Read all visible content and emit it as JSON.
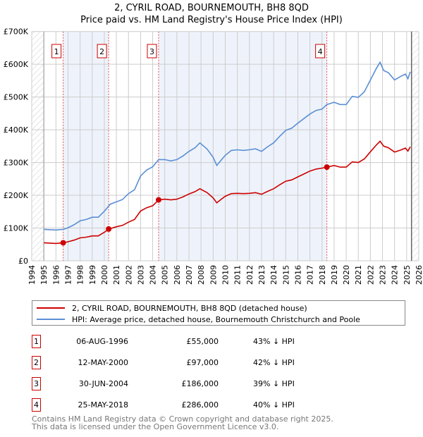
{
  "title": "2, CYRIL ROAD, BOURNEMOUTH, BH8 8QD",
  "subtitle": "Price paid vs. HM Land Registry's House Price Index (HPI)",
  "colors": {
    "property": "#cc0000",
    "hpi": "#5b8fd4",
    "shade": "#eef3fb"
  },
  "chart_data": {
    "type": "line",
    "title": "2, CYRIL ROAD, BOURNEMOUTH, BH8 8QD — Price paid vs. HM Land Registry's House Price Index (HPI)",
    "xlim": [
      1994,
      2026
    ],
    "ylim": [
      0,
      700000
    ],
    "x_ticks": [
      "1994",
      "1995",
      "1996",
      "1997",
      "1998",
      "1999",
      "2000",
      "2001",
      "2002",
      "2003",
      "2004",
      "2005",
      "2006",
      "2007",
      "2008",
      "2009",
      "2010",
      "2011",
      "2012",
      "2013",
      "2014",
      "2015",
      "2016",
      "2017",
      "2018",
      "2019",
      "2020",
      "2021",
      "2022",
      "2023",
      "2024",
      "2025",
      "2026"
    ],
    "y_ticks": [
      {
        "v": 0,
        "label": "£0"
      },
      {
        "v": 100000,
        "label": "£100K"
      },
      {
        "v": 200000,
        "label": "£200K"
      },
      {
        "v": 300000,
        "label": "£300K"
      },
      {
        "v": 400000,
        "label": "£400K"
      },
      {
        "v": 500000,
        "label": "£500K"
      },
      {
        "v": 600000,
        "label": "£600K"
      },
      {
        "v": 700000,
        "label": "£700K"
      }
    ],
    "grid": true,
    "series": [
      {
        "name": "HPI: Average price, detached house, Bournemouth Christchurch and Poole",
        "color": "#5b8fd4",
        "x": [
          1995,
          1996,
          1996.6,
          1997,
          1997.5,
          1998,
          1998.5,
          1999,
          1999.5,
          2000,
          2000.5,
          2001,
          2001.5,
          2002,
          2002.5,
          2003,
          2003.5,
          2004,
          2004.5,
          2005,
          2005.5,
          2006,
          2006.5,
          2007,
          2007.5,
          2007.9,
          2008.5,
          2009,
          2009.3,
          2009.7,
          2010,
          2010.5,
          2011,
          2011.5,
          2012,
          2012.5,
          2013,
          2013.5,
          2014,
          2014.5,
          2015,
          2015.5,
          2016,
          2016.5,
          2017,
          2017.5,
          2018,
          2018.4,
          2019,
          2019.5,
          2020,
          2020.5,
          2021,
          2021.5,
          2022,
          2022.5,
          2022.8,
          2023.1,
          2023.5,
          2024,
          2024.5,
          2024.9,
          2025.1,
          2025.3
        ],
        "y": [
          96000,
          94000,
          96000,
          101000,
          110000,
          122000,
          126000,
          133000,
          133000,
          151000,
          173000,
          180000,
          187000,
          205000,
          217000,
          259000,
          277000,
          287000,
          309000,
          309000,
          305000,
          309000,
          320000,
          334000,
          345000,
          360000,
          341000,
          316000,
          291000,
          309000,
          322000,
          337000,
          339000,
          337000,
          339000,
          342000,
          334000,
          348000,
          360000,
          380000,
          398000,
          405000,
          420000,
          434000,
          448000,
          459000,
          463000,
          477000,
          484000,
          477000,
          477000,
          502000,
          499000,
          516000,
          552000,
          588000,
          606000,
          581000,
          574000,
          552000,
          563000,
          570000,
          556000,
          577000
        ]
      },
      {
        "name": "2, CYRIL ROAD, BOURNEMOUTH, BH8 8QD (detached house)",
        "color": "#cc0000",
        "x": [
          1995,
          1996,
          1996.6,
          1997,
          1997.5,
          1998,
          1998.5,
          1999,
          1999.5,
          2000,
          2000.4,
          2001,
          2001.5,
          2002,
          2002.5,
          2003,
          2003.5,
          2004,
          2004.5,
          2005,
          2005.5,
          2006,
          2006.5,
          2007,
          2007.5,
          2007.9,
          2008.5,
          2009,
          2009.3,
          2009.7,
          2010,
          2010.5,
          2011,
          2011.5,
          2012,
          2012.5,
          2013,
          2013.5,
          2014,
          2014.5,
          2015,
          2015.5,
          2016,
          2016.5,
          2017,
          2017.5,
          2018,
          2018.4,
          2019,
          2019.5,
          2020,
          2020.5,
          2021,
          2021.5,
          2022,
          2022.5,
          2022.8,
          2023.1,
          2023.5,
          2024,
          2024.5,
          2024.9,
          2025.1,
          2025.3
        ],
        "y": [
          55000,
          53000,
          55000,
          58000,
          63000,
          70000,
          72000,
          76000,
          76000,
          87000,
          97000,
          104000,
          108000,
          118000,
          126000,
          152000,
          162000,
          168000,
          186000,
          188000,
          186000,
          188000,
          195000,
          204000,
          211000,
          220000,
          208000,
          192000,
          177000,
          189000,
          197000,
          205000,
          206000,
          205000,
          206000,
          208000,
          203000,
          212000,
          220000,
          232000,
          243000,
          247000,
          256000,
          265000,
          274000,
          280000,
          283000,
          286000,
          291000,
          286000,
          286000,
          302000,
          300000,
          311000,
          333000,
          354000,
          365000,
          350000,
          345000,
          332000,
          338000,
          344000,
          335000,
          348000
        ]
      }
    ],
    "sales": [
      {
        "n": "1",
        "x": 1996.6,
        "price": 55000
      },
      {
        "n": "2",
        "x": 2000.36,
        "price": 97000
      },
      {
        "n": "3",
        "x": 2004.49,
        "price": 186000
      },
      {
        "n": "4",
        "x": 2018.4,
        "price": 286000
      }
    ],
    "data_end": 2025.4
  },
  "legend": {
    "property": "2, CYRIL ROAD, BOURNEMOUTH, BH8 8QD (detached house)",
    "hpi": "HPI: Average price, detached house, Bournemouth Christchurch and Poole"
  },
  "transactions": [
    {
      "n": "1",
      "date": "06-AUG-1996",
      "price": "£55,000",
      "hpi": "43% ↓ HPI"
    },
    {
      "n": "2",
      "date": "12-MAY-2000",
      "price": "£97,000",
      "hpi": "42% ↓ HPI"
    },
    {
      "n": "3",
      "date": "30-JUN-2004",
      "price": "£186,000",
      "hpi": "39% ↓ HPI"
    },
    {
      "n": "4",
      "date": "25-MAY-2018",
      "price": "£286,000",
      "hpi": "40% ↓ HPI"
    }
  ],
  "footer": {
    "line1": "Contains HM Land Registry data © Crown copyright and database right 2025.",
    "line2": "This data is licensed under the Open Government Licence v3.0."
  }
}
